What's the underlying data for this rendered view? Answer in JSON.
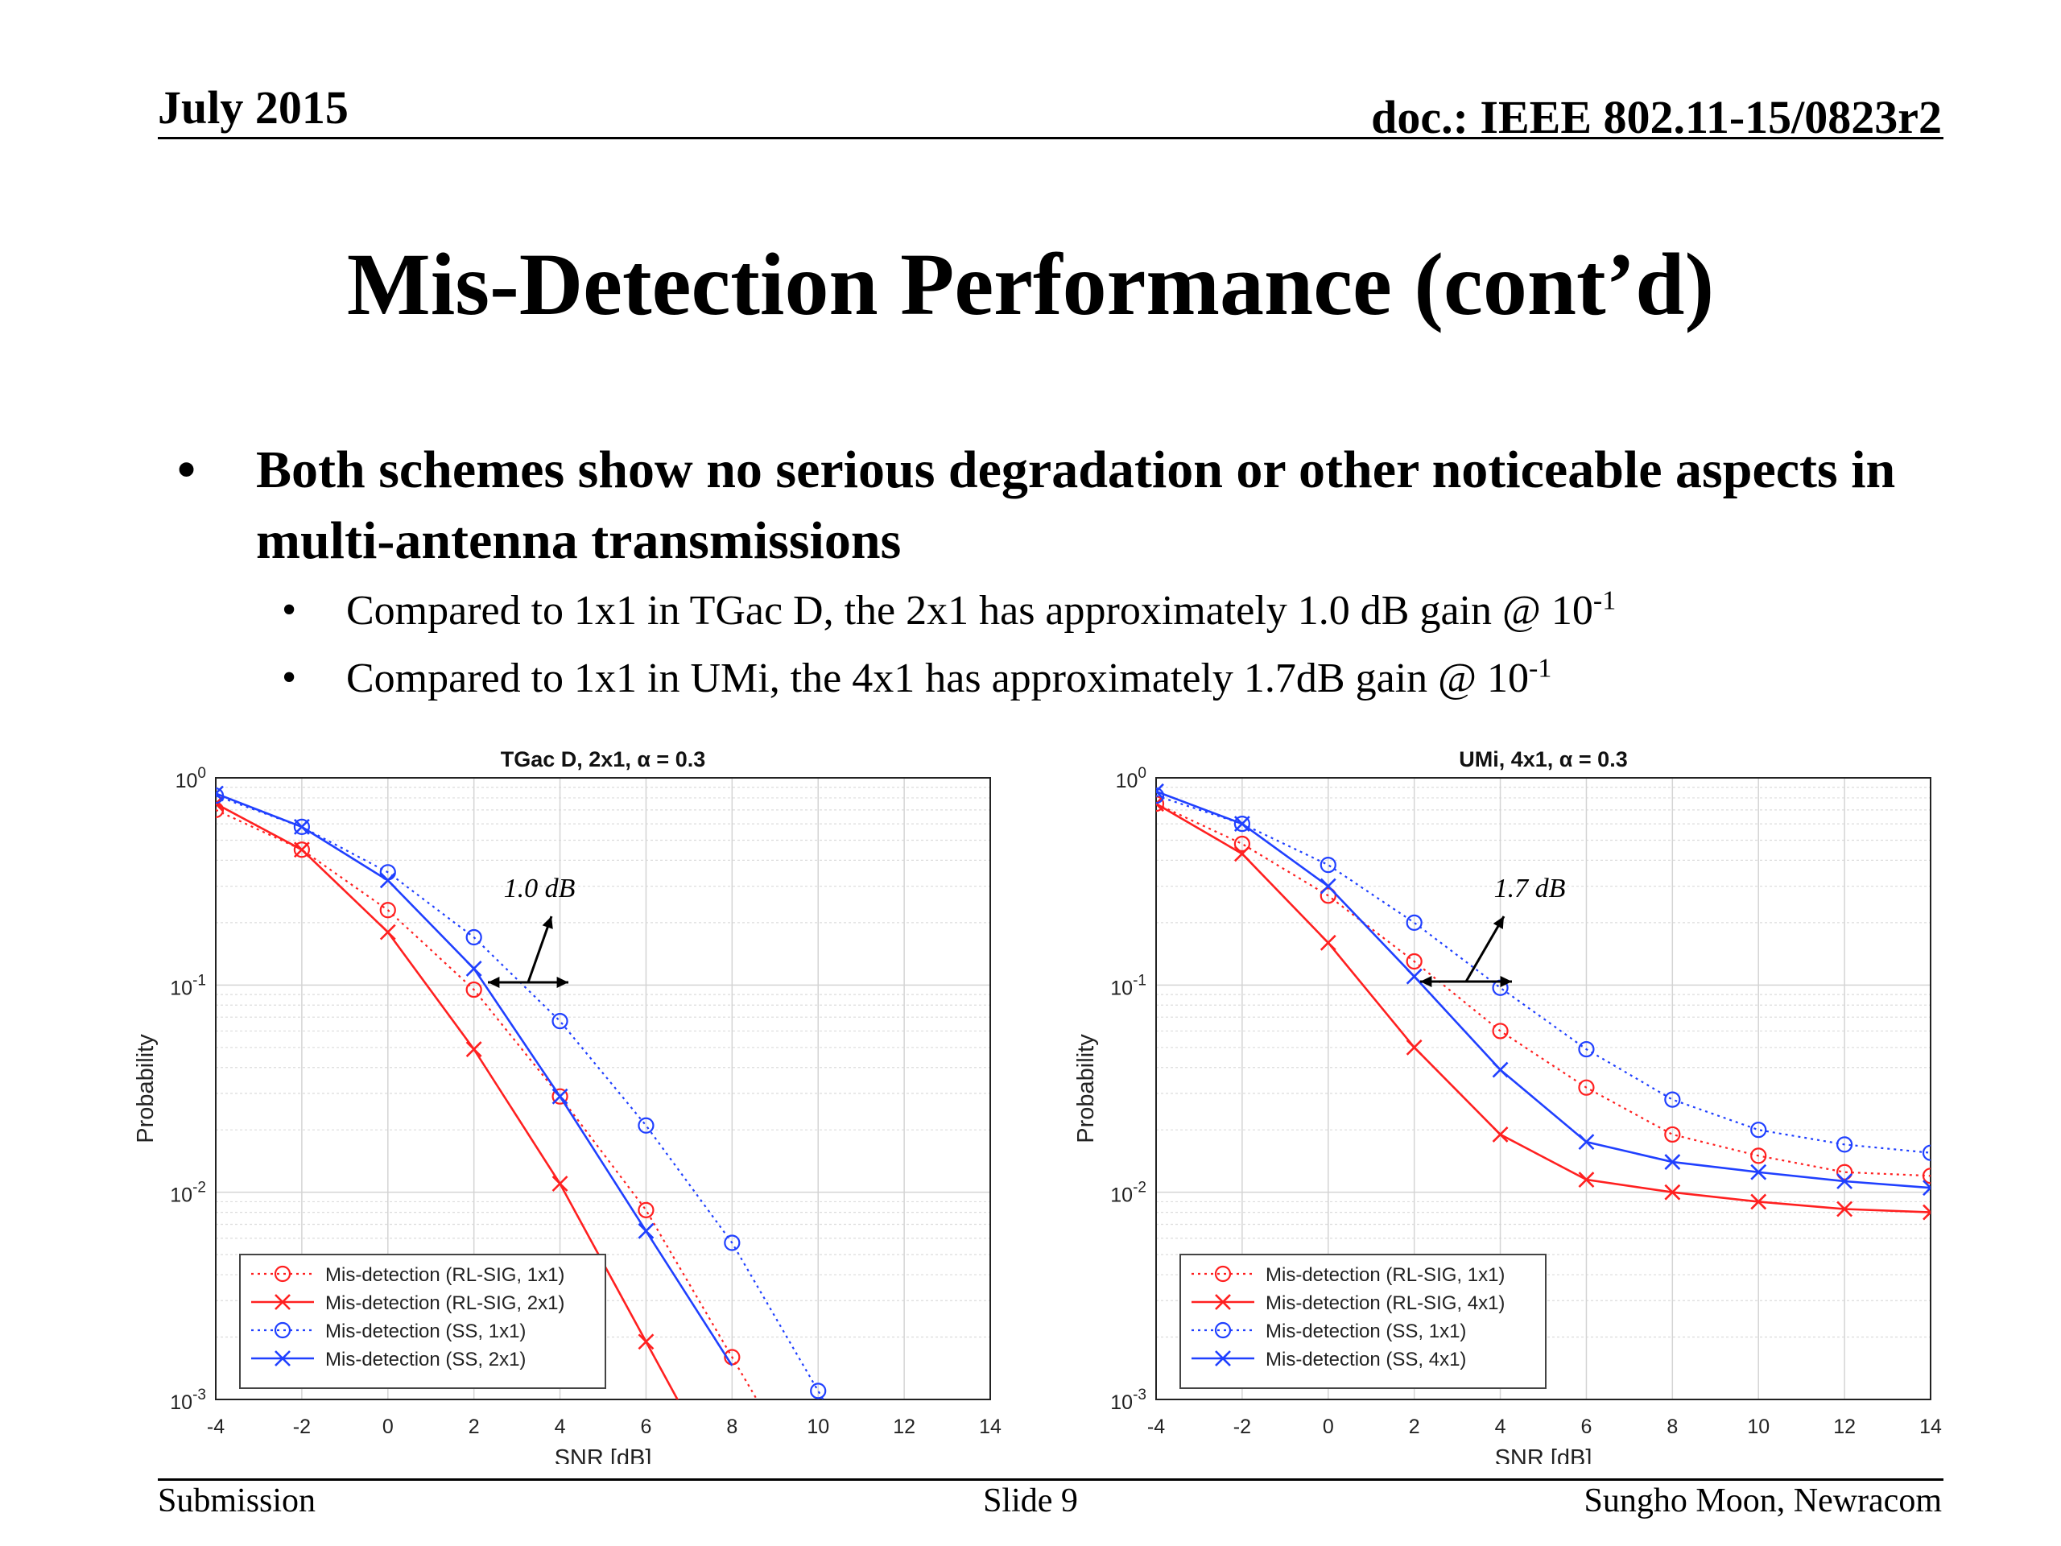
{
  "header": {
    "date": "July 2015",
    "doc": "doc.: IEEE 802.11-15/0823r2"
  },
  "title": "Mis-Detection Performance (cont’d)",
  "bullets": {
    "main": "Both schemes show no serious degradation or other noticeable aspects in multi-antenna transmissions",
    "sub1": {
      "text": "Compared to 1x1 in TGac D, the 2x1 has approximately 1.0 dB gain @ 10",
      "exp": "-1"
    },
    "sub2": {
      "text": "Compared to 1x1 in UMi, the 4x1 has approximately 1.7dB gain @ 10",
      "exp": "-1"
    }
  },
  "chart_data": [
    {
      "type": "line",
      "title": "TGac D, 2x1, α = 0.3",
      "xlabel": "SNR [dB]",
      "ylabel": "Probability",
      "yscale": "log",
      "xlim": [
        -4,
        14
      ],
      "ylim": [
        0.001,
        1
      ],
      "xticks": [
        "-4",
        "-2",
        "0",
        "2",
        "4",
        "6",
        "8",
        "10",
        "12",
        "14"
      ],
      "yticks": [
        {
          "base": "10",
          "exp": "0"
        },
        {
          "base": "10",
          "exp": "-1"
        },
        {
          "base": "10",
          "exp": "-2"
        },
        {
          "base": "10",
          "exp": "-3"
        }
      ],
      "grid": true,
      "legend_position": "bottom-left",
      "annotation": "1.0 dB",
      "series": [
        {
          "name": "Mis-detection (RL-SIG, 1x1)",
          "color": "#ff2020",
          "style": "dotted",
          "marker": "circle",
          "x": [
            -4,
            -2,
            0,
            2,
            4,
            6,
            8,
            10,
            12,
            14
          ],
          "y": [
            0.7,
            0.45,
            0.23,
            0.095,
            0.029,
            0.0082,
            0.0016,
            null,
            null,
            null
          ]
        },
        {
          "name": "Mis-detection (RL-SIG, 2x1)",
          "color": "#ff2020",
          "style": "solid",
          "marker": "x",
          "x": [
            -4,
            -2,
            0,
            2,
            4,
            6,
            8,
            10,
            12,
            14
          ],
          "y": [
            0.75,
            0.45,
            0.18,
            0.049,
            0.011,
            0.0019,
            null,
            null,
            null,
            null
          ]
        },
        {
          "name": "Mis-detection (SS, 1x1)",
          "color": "#2040ff",
          "style": "dotted",
          "marker": "circle",
          "x": [
            -4,
            -2,
            0,
            2,
            4,
            6,
            8,
            10,
            12,
            14
          ],
          "y": [
            0.82,
            0.58,
            0.35,
            0.17,
            0.067,
            0.021,
            0.0057,
            0.0011,
            null,
            null
          ]
        },
        {
          "name": "Mis-detection (SS, 2x1)",
          "color": "#2040ff",
          "style": "solid",
          "marker": "x",
          "x": [
            -4,
            -2,
            0,
            2,
            4,
            6,
            8,
            10,
            12,
            14
          ],
          "y": [
            0.84,
            0.58,
            0.32,
            0.12,
            0.029,
            0.0065,
            null,
            null,
            null,
            null
          ]
        }
      ]
    },
    {
      "type": "line",
      "title": "UMi, 4x1, α = 0.3",
      "xlabel": "SNR [dB]",
      "ylabel": "Probability",
      "yscale": "log",
      "xlim": [
        -4,
        14
      ],
      "ylim": [
        0.001,
        1
      ],
      "xticks": [
        "-4",
        "-2",
        "0",
        "2",
        "4",
        "6",
        "8",
        "10",
        "12",
        "14"
      ],
      "yticks": [
        {
          "base": "10",
          "exp": "0"
        },
        {
          "base": "10",
          "exp": "-1"
        },
        {
          "base": "10",
          "exp": "-2"
        },
        {
          "base": "10",
          "exp": "-3"
        }
      ],
      "grid": true,
      "legend_position": "bottom-left",
      "annotation": "1.7 dB",
      "series": [
        {
          "name": "Mis-detection (RL-SIG, 1x1)",
          "color": "#ff2020",
          "style": "dotted",
          "marker": "circle",
          "x": [
            -4,
            -2,
            0,
            2,
            4,
            6,
            8,
            10,
            12,
            14
          ],
          "y": [
            0.75,
            0.48,
            0.27,
            0.13,
            0.06,
            0.032,
            0.019,
            0.015,
            0.0125,
            0.012
          ]
        },
        {
          "name": "Mis-detection (RL-SIG, 4x1)",
          "color": "#ff2020",
          "style": "solid",
          "marker": "x",
          "x": [
            -4,
            -2,
            0,
            2,
            4,
            6,
            8,
            10,
            12,
            14
          ],
          "y": [
            0.75,
            0.43,
            0.16,
            0.05,
            0.019,
            0.0115,
            0.01,
            0.009,
            0.0083,
            0.008
          ]
        },
        {
          "name": "Mis-detection (SS, 1x1)",
          "color": "#2040ff",
          "style": "dotted",
          "marker": "circle",
          "x": [
            -4,
            -2,
            0,
            2,
            4,
            6,
            8,
            10,
            12,
            14
          ],
          "y": [
            0.82,
            0.6,
            0.38,
            0.2,
            0.097,
            0.049,
            0.028,
            0.02,
            0.017,
            0.0155
          ]
        },
        {
          "name": "Mis-detection (SS, 4x1)",
          "color": "#2040ff",
          "style": "solid",
          "marker": "x",
          "x": [
            -4,
            -2,
            0,
            2,
            4,
            6,
            8,
            10,
            12,
            14
          ],
          "y": [
            0.86,
            0.6,
            0.3,
            0.11,
            0.039,
            0.0175,
            0.014,
            0.0125,
            0.0113,
            0.0105
          ]
        }
      ]
    }
  ],
  "footer": {
    "left": "Submission",
    "center": "Slide 9",
    "right": "Sungho Moon, Newracom"
  }
}
